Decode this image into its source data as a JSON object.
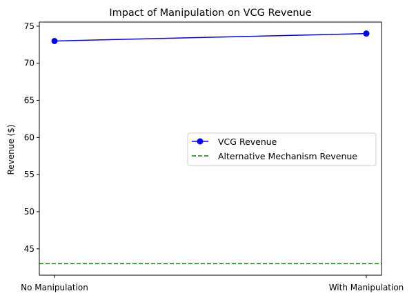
{
  "chart_data": {
    "type": "line",
    "title": "Impact of Manipulation on VCG Revenue",
    "xlabel": "",
    "ylabel": "Revenue ($)",
    "categories": [
      "No Manipulation",
      "With Manipulation"
    ],
    "series": [
      {
        "name": "VCG Revenue",
        "values": [
          73,
          74
        ],
        "color": "#0000ff",
        "style": "solid",
        "marker": "circle"
      }
    ],
    "reference_lines": [
      {
        "name": "Alternative Mechanism Revenue",
        "value": 43,
        "color": "#008000",
        "style": "dashed"
      }
    ],
    "ylim": [
      41.45,
      75.55
    ],
    "yticks": [
      45,
      50,
      55,
      60,
      65,
      70,
      75
    ],
    "grid": false,
    "legend_position": "center-right"
  }
}
